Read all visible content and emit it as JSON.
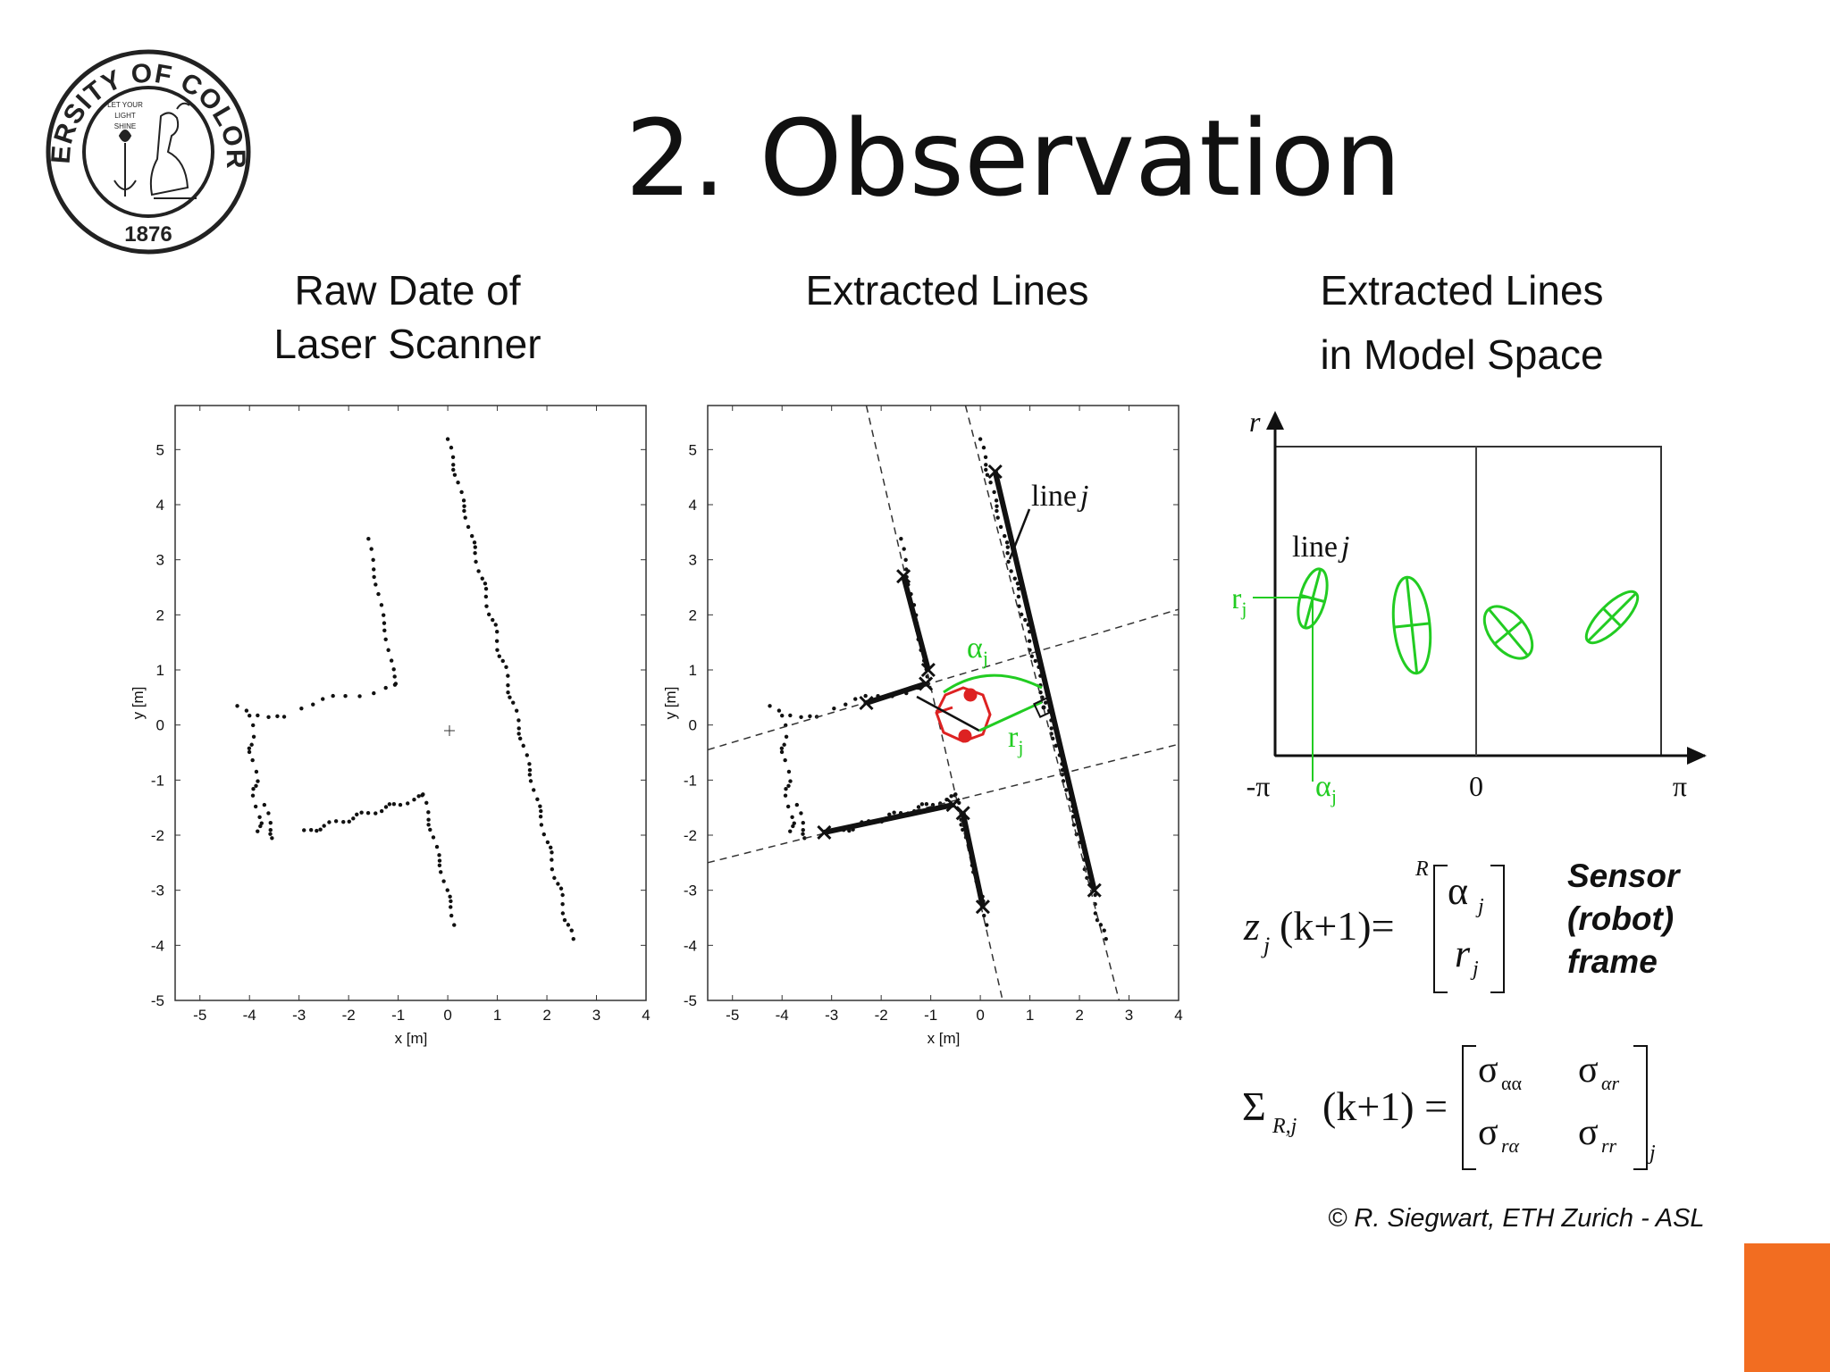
{
  "title": "2. Observation",
  "logo": {
    "ring_text": "UNIVERSITY OF COLORADO",
    "year": "1876",
    "motto": [
      "LET YOUR",
      "LIGHT",
      "SHINE"
    ]
  },
  "panels": {
    "raw": {
      "caption_line1": "Raw Date of",
      "caption_line2": "Laser Scanner"
    },
    "extracted": {
      "caption": "Extracted Lines"
    },
    "model": {
      "caption_line1": "Extracted Lines",
      "caption_line2": "in Model Space"
    }
  },
  "plot_axes": {
    "xlabel": "x [m]",
    "ylabel": "y [m]",
    "xticks": [
      "-5",
      "-4",
      "-3",
      "-2",
      "-1",
      "0",
      "1",
      "2",
      "3",
      "4"
    ],
    "yticks": [
      "5",
      "4",
      "3",
      "2",
      "1",
      "0",
      "-1",
      "-2",
      "-3",
      "-4",
      "-5"
    ]
  },
  "extracted_annotations": {
    "line_label": "line",
    "line_index": "j",
    "alpha_label": "α",
    "r_label": "r",
    "sub": "j"
  },
  "model_space": {
    "r_axis": "r",
    "line_label": "line",
    "line_index": "j",
    "r_j": "r",
    "x_ticks": [
      "-π",
      "0",
      "π"
    ],
    "alpha_label": "α",
    "sub": "j"
  },
  "equations": {
    "z_lhs": "z",
    "z_sub": "j",
    "z_args": "(k+1)=",
    "frame_sup": "R",
    "vec_top": "α",
    "vec_bottom": "r",
    "vec_sub": "j",
    "sigma_lhs": "Σ",
    "sigma_sub": "R,j",
    "sigma_args": "(k+1) =",
    "m11": "σ",
    "m11s": "αα",
    "m12": "σ",
    "m12s": "αr",
    "m21": "σ",
    "m21s": "rα",
    "m22": "σ",
    "m22s": "rr",
    "mat_sub": "j"
  },
  "sensor_note": [
    "Sensor",
    "(robot)",
    "frame"
  ],
  "credit": "© R. Siegwart, ETH Zurich - ASL",
  "colors": {
    "accent_orange": "#f26d21",
    "annotation_green": "#22cc22",
    "robot_red": "#dd2222"
  }
}
